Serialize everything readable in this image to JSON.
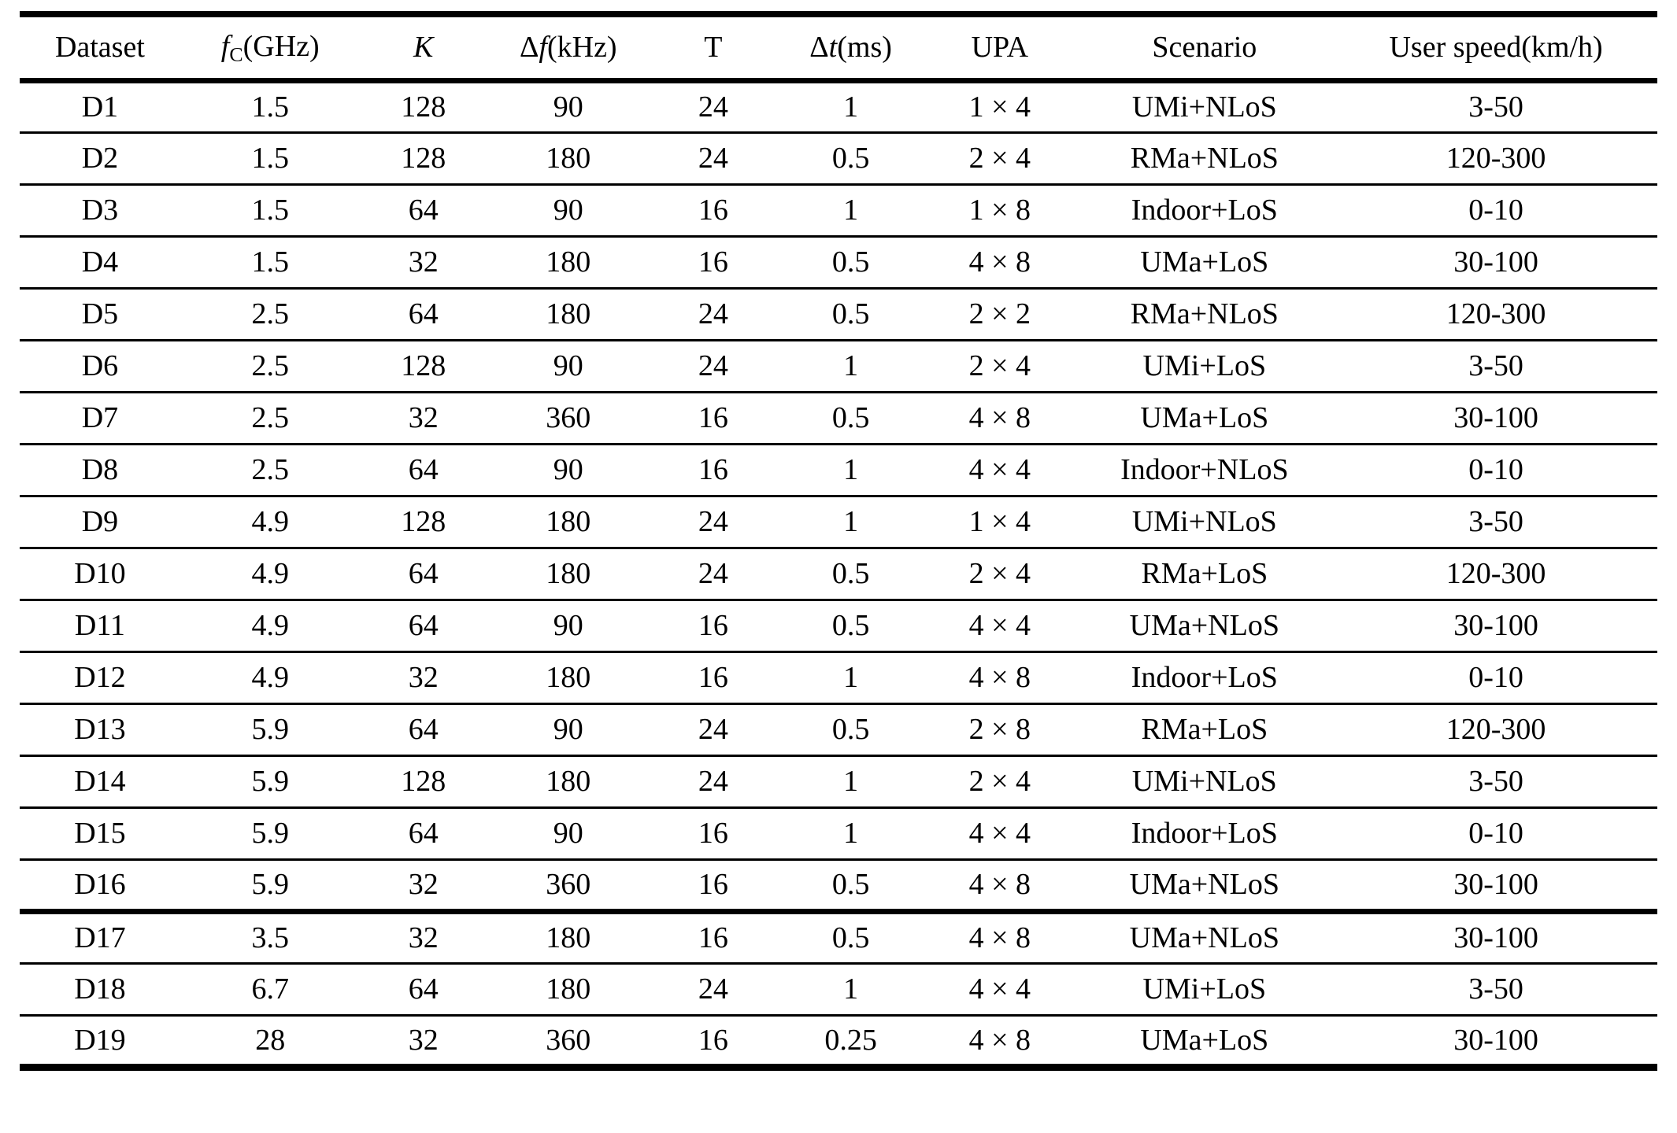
{
  "colors": {
    "background": "#ffffff",
    "text": "#000000",
    "rule": "#000000"
  },
  "table": {
    "column_widths_pct": [
      9.8,
      11.0,
      7.7,
      10.0,
      7.7,
      9.1,
      9.1,
      15.9,
      19.7
    ],
    "columns": [
      {
        "key": "dataset",
        "label": "Dataset",
        "segments": [
          {
            "t": "Dataset"
          }
        ]
      },
      {
        "key": "fc-ghz",
        "label": "fC(GHz)",
        "segments": [
          {
            "t": "f",
            "s": "i"
          },
          {
            "t": "C",
            "s": "sub"
          },
          {
            "t": "(GHz)"
          }
        ]
      },
      {
        "key": "k",
        "label": "K",
        "segments": [
          {
            "t": "K",
            "s": "i"
          }
        ]
      },
      {
        "key": "delta-f-khz",
        "label": "Δf(kHz)",
        "segments": [
          {
            "t": "Δ"
          },
          {
            "t": "f",
            "s": "i"
          },
          {
            "t": "(kHz)"
          }
        ]
      },
      {
        "key": "t",
        "label": "T",
        "segments": [
          {
            "t": "T"
          }
        ]
      },
      {
        "key": "delta-t-ms",
        "label": "Δt(ms)",
        "segments": [
          {
            "t": "Δ"
          },
          {
            "t": "t",
            "s": "i"
          },
          {
            "t": "(ms)"
          }
        ]
      },
      {
        "key": "upa",
        "label": "UPA",
        "segments": [
          {
            "t": "UPA"
          }
        ]
      },
      {
        "key": "scenario",
        "label": "Scenario",
        "segments": [
          {
            "t": "Scenario"
          }
        ]
      },
      {
        "key": "user-speed",
        "label": "User speed(km/h)",
        "segments": [
          {
            "t": "User speed(km/h)"
          }
        ]
      }
    ],
    "groups": [
      {
        "rows": [
          [
            "D1",
            "1.5",
            "128",
            "90",
            "24",
            "1",
            "1 × 4",
            "UMi+NLoS",
            "3-50"
          ],
          [
            "D2",
            "1.5",
            "128",
            "180",
            "24",
            "0.5",
            "2 × 4",
            "RMa+NLoS",
            "120-300"
          ],
          [
            "D3",
            "1.5",
            "64",
            "90",
            "16",
            "1",
            "1 × 8",
            "Indoor+LoS",
            "0-10"
          ],
          [
            "D4",
            "1.5",
            "32",
            "180",
            "16",
            "0.5",
            "4 × 8",
            "UMa+LoS",
            "30-100"
          ],
          [
            "D5",
            "2.5",
            "64",
            "180",
            "24",
            "0.5",
            "2 × 2",
            "RMa+NLoS",
            "120-300"
          ],
          [
            "D6",
            "2.5",
            "128",
            "90",
            "24",
            "1",
            "2 × 4",
            "UMi+LoS",
            "3-50"
          ],
          [
            "D7",
            "2.5",
            "32",
            "360",
            "16",
            "0.5",
            "4 × 8",
            "UMa+LoS",
            "30-100"
          ],
          [
            "D8",
            "2.5",
            "64",
            "90",
            "16",
            "1",
            "4 × 4",
            "Indoor+NLoS",
            "0-10"
          ],
          [
            "D9",
            "4.9",
            "128",
            "180",
            "24",
            "1",
            "1 × 4",
            "UMi+NLoS",
            "3-50"
          ],
          [
            "D10",
            "4.9",
            "64",
            "180",
            "24",
            "0.5",
            "2 × 4",
            "RMa+LoS",
            "120-300"
          ],
          [
            "D11",
            "4.9",
            "64",
            "90",
            "16",
            "0.5",
            "4 × 4",
            "UMa+NLoS",
            "30-100"
          ],
          [
            "D12",
            "4.9",
            "32",
            "180",
            "16",
            "1",
            "4 × 8",
            "Indoor+LoS",
            "0-10"
          ],
          [
            "D13",
            "5.9",
            "64",
            "90",
            "24",
            "0.5",
            "2 × 8",
            "RMa+LoS",
            "120-300"
          ],
          [
            "D14",
            "5.9",
            "128",
            "180",
            "24",
            "1",
            "2 × 4",
            "UMi+NLoS",
            "3-50"
          ],
          [
            "D15",
            "5.9",
            "64",
            "90",
            "16",
            "1",
            "4 × 4",
            "Indoor+LoS",
            "0-10"
          ],
          [
            "D16",
            "5.9",
            "32",
            "360",
            "16",
            "0.5",
            "4 × 8",
            "UMa+NLoS",
            "30-100"
          ]
        ]
      },
      {
        "rows": [
          [
            "D17",
            "3.5",
            "32",
            "180",
            "16",
            "0.5",
            "4 × 8",
            "UMa+NLoS",
            "30-100"
          ],
          [
            "D18",
            "6.7",
            "64",
            "180",
            "24",
            "1",
            "4 × 4",
            "UMi+LoS",
            "3-50"
          ],
          [
            "D19",
            "28",
            "32",
            "360",
            "16",
            "0.25",
            "4 × 8",
            "UMa+LoS",
            "30-100"
          ]
        ]
      }
    ]
  }
}
